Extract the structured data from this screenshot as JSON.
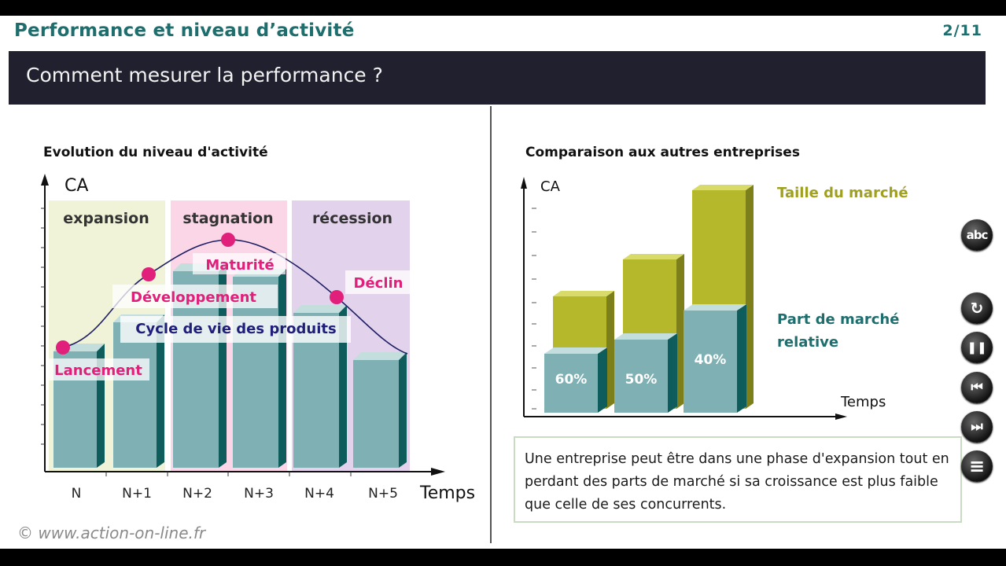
{
  "header": {
    "title": "Performance et niveau d’activité",
    "page": "2/11",
    "subtitle": "Comment mesurer la performance ?"
  },
  "left_chart": {
    "title": "Evolution du niveau d'activité",
    "y_axis_label": "CA",
    "x_axis_label": "Temps",
    "x_ticks": [
      "N",
      "N+1",
      "N+2",
      "N+3",
      "N+4",
      "N+5"
    ],
    "phases": [
      "expansion",
      "stagnation",
      "récession"
    ],
    "phase_colors": {
      "expansion": "#f0f3d8",
      "stagnation": "#fbd6e6",
      "récession": "#e3d2ec"
    },
    "stages": [
      "Lancement",
      "Développement",
      "Maturité",
      "Déclin"
    ],
    "curve_label": "Cycle de vie des produits",
    "bar_color": "#7fb0b3",
    "stage_color": "#e0207a"
  },
  "right_chart": {
    "title": "Comparaison aux autres entreprises",
    "y_axis_label": "CA",
    "x_axis_label": "Temps",
    "legend_market": "Taille du marché",
    "legend_share": "Part de marché relative",
    "market_color": "#b4b82a",
    "share_color": "#7fb0b3",
    "share_labels": [
      "60%",
      "50%",
      "40%"
    ]
  },
  "note": "Une entreprise peut être dans une phase d'expansion tout en perdant des parts de marché si sa croissance est plus faible que celle de ses concurrents.",
  "copyright": "© www.action-on-line.fr",
  "controls": {
    "abc": "abc",
    "replay": "↻",
    "pause": "❚❚",
    "previous": "⏮",
    "next": "⏭",
    "menu": "≡"
  }
}
